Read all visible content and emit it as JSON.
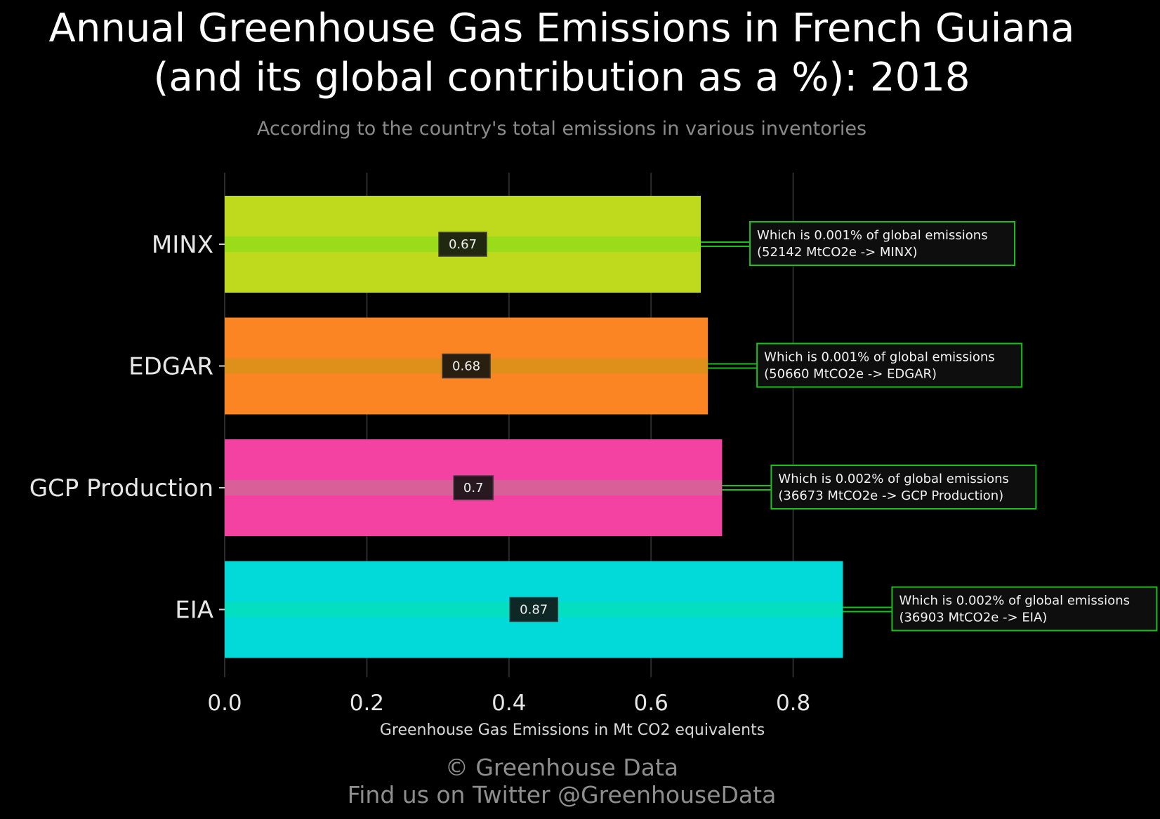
{
  "title_line1": "Annual Greenhouse Gas Emissions in French Guiana",
  "title_line2": "(and its global contribution as a %): 2018",
  "subtitle": "According to the country's total emissions in various inventories",
  "footer_line1": "© Greenhouse Data",
  "footer_line2": "Find us on Twitter @GreenhouseData",
  "chart_data": {
    "type": "bar",
    "orientation": "horizontal",
    "categories": [
      "MINX",
      "EDGAR",
      "GCP Production",
      "EIA"
    ],
    "values": [
      0.67,
      0.68,
      0.7,
      0.87
    ],
    "value_labels": [
      "0.67",
      "0.68",
      "0.7",
      "0.87"
    ],
    "colors": [
      "#bfd91c",
      "#fa8522",
      "#f442a2",
      "#02d9d9"
    ],
    "stripe_colors": [
      "#8fdc1a",
      "#d49418",
      "#d06a94",
      "#06e0b8"
    ],
    "annotations": [
      [
        "Which is 0.001% of global emissions",
        "(52142 MtCO2e -> MINX)"
      ],
      [
        "Which is 0.001% of global emissions",
        "(50660 MtCO2e -> EDGAR)"
      ],
      [
        "Which is 0.002% of global emissions",
        "(36673 MtCO2e -> GCP Production)"
      ],
      [
        "Which is 0.002% of global emissions",
        "(36903 MtCO2e -> EIA)"
      ]
    ],
    "annotation_border_color": "#19c219",
    "xlabel": "Greenhouse Gas Emissions in Mt CO2 equivalents",
    "xticks": [
      "0.0",
      "0.2",
      "0.4",
      "0.6",
      "0.8"
    ],
    "xtick_values": [
      0,
      0.2,
      0.4,
      0.6,
      0.8
    ],
    "xlim": [
      0,
      1.0
    ],
    "grid": true,
    "legend": "none"
  }
}
